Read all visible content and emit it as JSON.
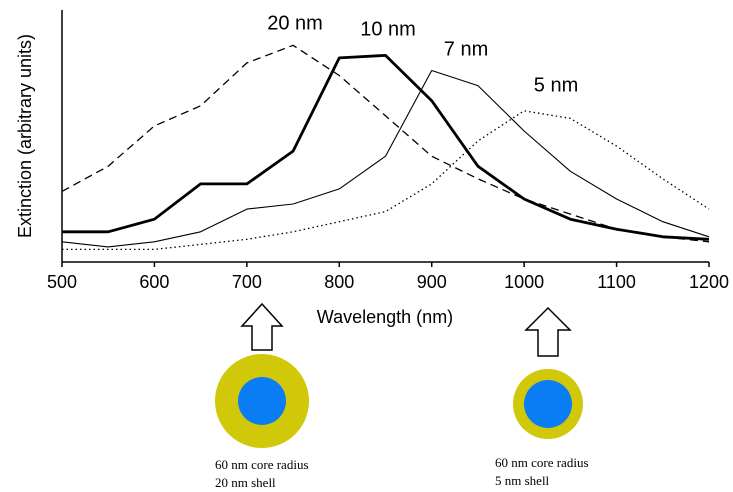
{
  "chart_data": {
    "type": "line",
    "x_label": "Wavelength (nm)",
    "y_label": "Extinction (arbitrary units)",
    "x": [
      500,
      550,
      600,
      650,
      700,
      750,
      800,
      850,
      900,
      950,
      1000,
      1050,
      1100,
      1150,
      1200
    ],
    "series": [
      {
        "name": "20 nm",
        "color": "#000000",
        "style": "dashed",
        "linewidth": 1.3,
        "values": [
          0.28,
          0.38,
          0.54,
          0.62,
          0.79,
          0.86,
          0.74,
          0.58,
          0.42,
          0.33,
          0.25,
          0.19,
          0.13,
          0.1,
          0.08
        ]
      },
      {
        "name": "10 nm",
        "color": "#000000",
        "style": "solid",
        "linewidth": 2.8,
        "values": [
          0.12,
          0.12,
          0.17,
          0.31,
          0.31,
          0.44,
          0.81,
          0.82,
          0.64,
          0.38,
          0.25,
          0.17,
          0.13,
          0.1,
          0.09
        ]
      },
      {
        "name": "7 nm",
        "color": "#000000",
        "style": "solid",
        "linewidth": 1.1,
        "values": [
          0.08,
          0.06,
          0.08,
          0.12,
          0.21,
          0.23,
          0.29,
          0.42,
          0.76,
          0.7,
          0.52,
          0.36,
          0.25,
          0.16,
          0.1
        ]
      },
      {
        "name": "5 nm",
        "color": "#000000",
        "style": "dotted",
        "linewidth": 1.3,
        "values": [
          0.05,
          0.05,
          0.05,
          0.07,
          0.09,
          0.12,
          0.16,
          0.2,
          0.31,
          0.48,
          0.6,
          0.57,
          0.46,
          0.33,
          0.21
        ]
      }
    ],
    "xlim": [
      500,
      1200
    ],
    "xticks": [
      500,
      600,
      700,
      800,
      900,
      1000,
      1100,
      1200
    ],
    "ylim": [
      0,
      1
    ]
  },
  "particles": [
    {
      "caption": [
        "60 nm core radius",
        "20 nm shell"
      ]
    },
    {
      "caption": [
        "60 nm core radius",
        "5 nm shell"
      ]
    }
  ]
}
